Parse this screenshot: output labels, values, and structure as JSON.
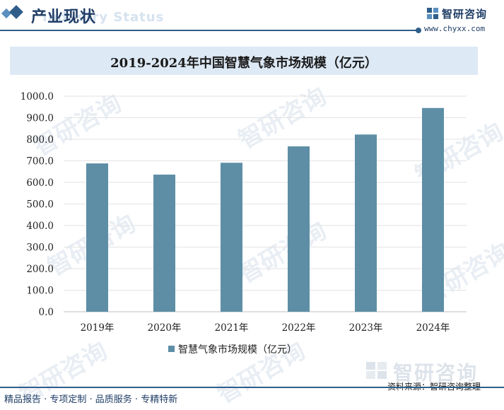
{
  "header": {
    "section_title": "产业现状",
    "ghost_text": "Industry Status",
    "brand_name": "智研咨询",
    "brand_url": "www.chyxx.com"
  },
  "watermark": {
    "text": "智研咨询"
  },
  "chart_data": {
    "type": "bar",
    "title": "2019-2024年中国智慧气象市场规模（亿元）",
    "categories": [
      "2019年",
      "2020年",
      "2021年",
      "2022年",
      "2023年",
      "2024年"
    ],
    "series": [
      {
        "name": "智慧气象市场规模（亿元）",
        "values": [
          688,
          636,
          691,
          767,
          822,
          945
        ]
      }
    ],
    "ylim": [
      0,
      1000
    ],
    "yticks": [
      "0.0",
      "100.0",
      "200.0",
      "300.0",
      "400.0",
      "500.0",
      "600.0",
      "700.0",
      "800.0",
      "900.0",
      "1000.0"
    ],
    "grid": true,
    "legend": "bottom-center",
    "bar_color": "#5d8ea6",
    "xlabel": "",
    "ylabel": ""
  },
  "footer": {
    "brand_name": "智研咨询",
    "source": "资料来源：智研咨询整理",
    "slogan": "精品报告 · 专项定制 · 品质服务 · 专精特新"
  }
}
